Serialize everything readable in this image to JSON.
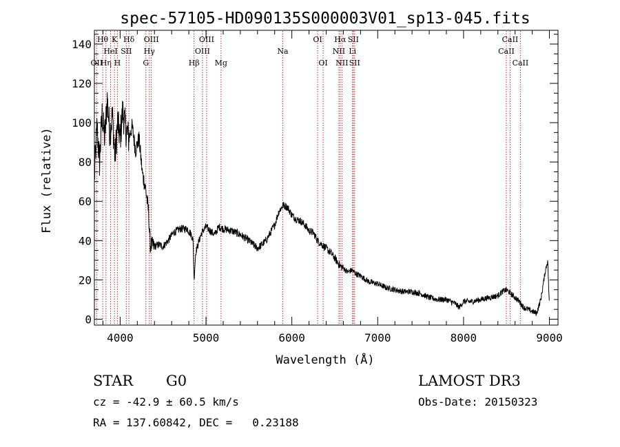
{
  "chart_data": {
    "type": "line",
    "title": "spec-57105-HD090135S000003V01_sp13-045.fits",
    "xlabel": "Wavelength (Å)",
    "ylabel": "Flux (relative)",
    "xlim": [
      3700,
      9100
    ],
    "ylim": [
      -3,
      147
    ],
    "x_ticks": [
      4000,
      5000,
      6000,
      7000,
      8000,
      9000
    ],
    "y_ticks": [
      0,
      20,
      40,
      60,
      80,
      100,
      120,
      140
    ],
    "series": [
      {
        "name": "flux",
        "x": [
          3700,
          3730,
          3760,
          3790,
          3820,
          3850,
          3880,
          3910,
          3940,
          3970,
          4000,
          4030,
          4060,
          4100,
          4140,
          4180,
          4220,
          4260,
          4290,
          4310,
          4330,
          4350,
          4400,
          4450,
          4500,
          4560,
          4620,
          4700,
          4780,
          4830,
          4850,
          4861,
          4880,
          4920,
          4950,
          5000,
          5050,
          5100,
          5150,
          5200,
          5300,
          5400,
          5500,
          5600,
          5700,
          5800,
          5850,
          5900,
          5950,
          6000,
          6050,
          6100,
          6150,
          6200,
          6250,
          6300,
          6350,
          6400,
          6450,
          6500,
          6563,
          6600,
          6650,
          6700,
          6750,
          6800,
          6900,
          7000,
          7100,
          7200,
          7300,
          7400,
          7500,
          7600,
          7700,
          7800,
          7900,
          7950,
          8000,
          8100,
          8200,
          8300,
          8400,
          8450,
          8500,
          8550,
          8600,
          8650,
          8700,
          8750,
          8800,
          8850,
          8900,
          8950,
          8980,
          9000
        ],
        "y": [
          72,
          98,
          80,
          104,
          92,
          112,
          95,
          104,
          82,
          100,
          92,
          106,
          98,
          92,
          98,
          86,
          92,
          74,
          68,
          62,
          55,
          38,
          37,
          38,
          37,
          40,
          44,
          46,
          46,
          43,
          40,
          20,
          34,
          40,
          44,
          47,
          45,
          43,
          47,
          46,
          45,
          43,
          40,
          36,
          40,
          48,
          55,
          58,
          57,
          53,
          51,
          50,
          48,
          45,
          44,
          40,
          38,
          36,
          34,
          31,
          27,
          26,
          24,
          25,
          23,
          22,
          19,
          18,
          16,
          15,
          14,
          14,
          13,
          11,
          10,
          10,
          8,
          6,
          9,
          9,
          10,
          11,
          12,
          14,
          15,
          13,
          11,
          9,
          6,
          5,
          4,
          3,
          10,
          24,
          30,
          6
        ]
      }
    ],
    "line_annotations": [
      {
        "label": "OII",
        "wavelength": 3727,
        "row": 3
      },
      {
        "label": "Hθ",
        "wavelength": 3797,
        "row": 1
      },
      {
        "label": "Hη",
        "wavelength": 3835,
        "row": 3
      },
      {
        "label": "HeI",
        "wavelength": 3889,
        "row": 2
      },
      {
        "label": "K",
        "wavelength": 3934,
        "row": 1
      },
      {
        "label": "H",
        "wavelength": 3968,
        "row": 3
      },
      {
        "label": "SII",
        "wavelength": 4072,
        "row": 2
      },
      {
        "label": "Hδ",
        "wavelength": 4102,
        "row": 1
      },
      {
        "label": "G",
        "wavelength": 4300,
        "row": 3
      },
      {
        "label": "Hγ",
        "wavelength": 4340,
        "row": 2
      },
      {
        "label": "OIII",
        "wavelength": 4363,
        "row": 1
      },
      {
        "label": "Hβ",
        "wavelength": 4861,
        "row": 3
      },
      {
        "label": "OIII",
        "wavelength": 4959,
        "row": 2
      },
      {
        "label": "OIII",
        "wavelength": 5007,
        "row": 1
      },
      {
        "label": "Mg",
        "wavelength": 5175,
        "row": 3
      },
      {
        "label": "Na",
        "wavelength": 5894,
        "row": 2
      },
      {
        "label": "OI",
        "wavelength": 6300,
        "row": 1
      },
      {
        "label": "OI",
        "wavelength": 6364,
        "row": 3
      },
      {
        "label": "NII",
        "wavelength": 6548,
        "row": 2
      },
      {
        "label": "Hα",
        "wavelength": 6563,
        "row": 1
      },
      {
        "label": "NII",
        "wavelength": 6583,
        "row": 3
      },
      {
        "label": "Li",
        "wavelength": 6707,
        "row": 2
      },
      {
        "label": "SII",
        "wavelength": 6716,
        "row": 1
      },
      {
        "label": "SII",
        "wavelength": 6731,
        "row": 3
      },
      {
        "label": "CaII",
        "wavelength": 8498,
        "row": 2
      },
      {
        "label": "CaII",
        "wavelength": 8542,
        "row": 1
      },
      {
        "label": "CaII",
        "wavelength": 8662,
        "row": 3
      }
    ]
  },
  "info": {
    "class_label": "STAR",
    "subclass": "G0",
    "survey": "LAMOST DR3",
    "cz": "cz = -42.9 ± 60.5 km/s",
    "obs_date": "Obs-Date: 20150323",
    "radec": "RA = 137.60842, DEC =   0.23188"
  }
}
